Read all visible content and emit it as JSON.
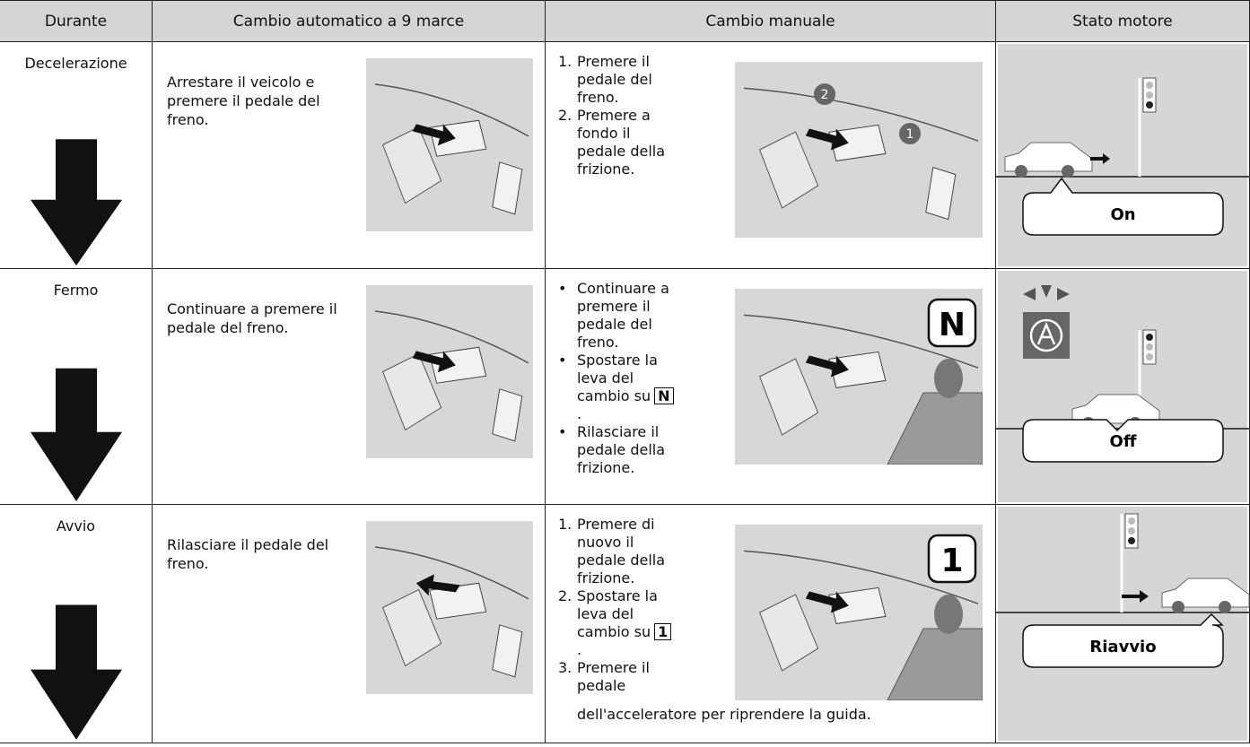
{
  "header": [
    "Durante",
    "Cambio automatico a 9 marce",
    "Cambio manuale",
    "Stato motore"
  ],
  "rows": [
    {
      "phase": "Decelerazione",
      "automatic": "Arrestare il veicolo e premere il pedale del freno.",
      "manual": [
        {
          "marker": "1.",
          "text": "Premere il pedale del freno."
        },
        {
          "marker": "2.",
          "text": "Premere a fondo il pedale della frizione."
        }
      ],
      "figure_badges": [
        "2",
        "1"
      ],
      "engine": "On"
    },
    {
      "phase": "Fermo",
      "automatic": "Continuare a premere il pedale del freno.",
      "manual": [
        {
          "marker": "•",
          "text": "Continuare a premere il pedale del freno."
        },
        {
          "marker": "•",
          "text": "Spostare la leva del cambio su",
          "key": "N",
          "after": "."
        },
        {
          "marker": "•",
          "text": "Rilasciare il pedale della frizione."
        }
      ],
      "figure_gear": "N",
      "engine": "Off"
    },
    {
      "phase": "Avvio",
      "automatic": "Rilasciare il pedale del freno.",
      "manual": [
        {
          "marker": "1.",
          "text": "Premere di nuovo il pedale della frizione."
        },
        {
          "marker": "2.",
          "text": "Spostare la leva del cambio su",
          "key": "1",
          "after": "."
        },
        {
          "marker": "3.",
          "text": "Premere il pedale dell'acceleratore per riprendere la guida."
        }
      ],
      "figure_gear": "1",
      "engine": "Riavvio"
    }
  ]
}
